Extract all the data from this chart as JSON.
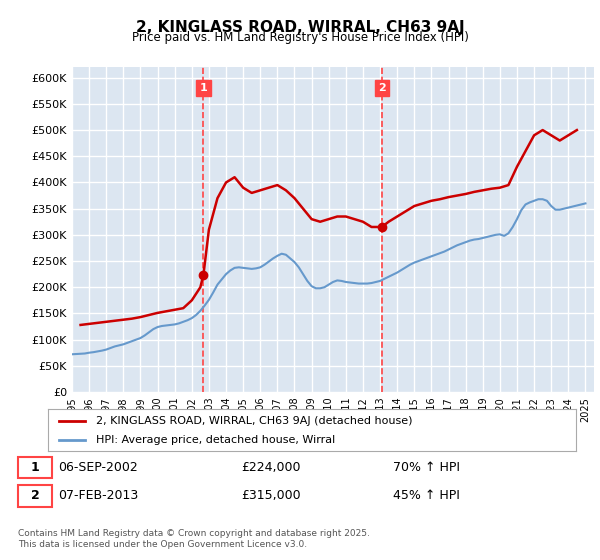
{
  "title": "2, KINGLASS ROAD, WIRRAL, CH63 9AJ",
  "subtitle": "Price paid vs. HM Land Registry's House Price Index (HPI)",
  "ylabel_ticks": [
    "£0",
    "£50K",
    "£100K",
    "£150K",
    "£200K",
    "£250K",
    "£300K",
    "£350K",
    "£400K",
    "£450K",
    "£500K",
    "£550K",
    "£600K"
  ],
  "ylim": [
    0,
    620000
  ],
  "ytick_values": [
    0,
    50000,
    100000,
    150000,
    200000,
    250000,
    300000,
    350000,
    400000,
    450000,
    500000,
    550000,
    600000
  ],
  "xlim_start": 1995.0,
  "xlim_end": 2025.5,
  "background_color": "#dce6f1",
  "plot_background": "#dce6f1",
  "grid_color": "#ffffff",
  "red_line_color": "#cc0000",
  "blue_line_color": "#6699cc",
  "vline_color": "#ff4444",
  "annotation_box_color": "#ff4444",
  "transaction1_date": "06-SEP-2002",
  "transaction1_price": 224000,
  "transaction1_hpi": "70% ↑ HPI",
  "transaction1_x": 2002.68,
  "transaction2_date": "07-FEB-2013",
  "transaction2_price": 315000,
  "transaction2_hpi": "45% ↑ HPI",
  "transaction2_x": 2013.1,
  "legend_label_red": "2, KINGLASS ROAD, WIRRAL, CH63 9AJ (detached house)",
  "legend_label_blue": "HPI: Average price, detached house, Wirral",
  "footer_text": "Contains HM Land Registry data © Crown copyright and database right 2025.\nThis data is licensed under the Open Government Licence v3.0.",
  "hpi_data_x": [
    1995.0,
    1995.25,
    1995.5,
    1995.75,
    1996.0,
    1996.25,
    1996.5,
    1996.75,
    1997.0,
    1997.25,
    1997.5,
    1997.75,
    1998.0,
    1998.25,
    1998.5,
    1998.75,
    1999.0,
    1999.25,
    1999.5,
    1999.75,
    2000.0,
    2000.25,
    2000.5,
    2000.75,
    2001.0,
    2001.25,
    2001.5,
    2001.75,
    2002.0,
    2002.25,
    2002.5,
    2002.75,
    2003.0,
    2003.25,
    2003.5,
    2003.75,
    2004.0,
    2004.25,
    2004.5,
    2004.75,
    2005.0,
    2005.25,
    2005.5,
    2005.75,
    2006.0,
    2006.25,
    2006.5,
    2006.75,
    2007.0,
    2007.25,
    2007.5,
    2007.75,
    2008.0,
    2008.25,
    2008.5,
    2008.75,
    2009.0,
    2009.25,
    2009.5,
    2009.75,
    2010.0,
    2010.25,
    2010.5,
    2010.75,
    2011.0,
    2011.25,
    2011.5,
    2011.75,
    2012.0,
    2012.25,
    2012.5,
    2012.75,
    2013.0,
    2013.25,
    2013.5,
    2013.75,
    2014.0,
    2014.25,
    2014.5,
    2014.75,
    2015.0,
    2015.25,
    2015.5,
    2015.75,
    2016.0,
    2016.25,
    2016.5,
    2016.75,
    2017.0,
    2017.25,
    2017.5,
    2017.75,
    2018.0,
    2018.25,
    2018.5,
    2018.75,
    2019.0,
    2019.25,
    2019.5,
    2019.75,
    2020.0,
    2020.25,
    2020.5,
    2020.75,
    2021.0,
    2021.25,
    2021.5,
    2021.75,
    2022.0,
    2022.25,
    2022.5,
    2022.75,
    2023.0,
    2023.25,
    2023.5,
    2023.75,
    2024.0,
    2024.25,
    2024.5,
    2024.75,
    2025.0
  ],
  "hpi_data_y": [
    72000,
    72500,
    73000,
    73500,
    75000,
    76000,
    77500,
    79000,
    81000,
    84000,
    87000,
    89000,
    91000,
    94000,
    97000,
    100000,
    103000,
    108000,
    114000,
    120000,
    124000,
    126000,
    127000,
    128000,
    129000,
    131000,
    134000,
    137000,
    141000,
    147000,
    155000,
    165000,
    176000,
    190000,
    205000,
    215000,
    225000,
    232000,
    237000,
    238000,
    237000,
    236000,
    235000,
    236000,
    238000,
    243000,
    249000,
    255000,
    260000,
    264000,
    262000,
    255000,
    248000,
    238000,
    225000,
    212000,
    202000,
    198000,
    198000,
    200000,
    205000,
    210000,
    213000,
    212000,
    210000,
    209000,
    208000,
    207000,
    207000,
    207000,
    208000,
    210000,
    212000,
    216000,
    220000,
    224000,
    228000,
    233000,
    238000,
    243000,
    247000,
    250000,
    253000,
    256000,
    259000,
    262000,
    265000,
    268000,
    272000,
    276000,
    280000,
    283000,
    286000,
    289000,
    291000,
    292000,
    294000,
    296000,
    298000,
    300000,
    301000,
    298000,
    303000,
    315000,
    330000,
    347000,
    358000,
    362000,
    365000,
    368000,
    368000,
    365000,
    355000,
    348000,
    348000,
    350000,
    352000,
    354000,
    356000,
    358000,
    360000
  ],
  "price_data_x": [
    1995.5,
    1996.0,
    1996.5,
    1997.0,
    1997.5,
    1998.0,
    1998.5,
    1999.0,
    1999.5,
    2000.0,
    2000.5,
    2001.0,
    2001.5,
    2002.0,
    2002.5,
    2002.68,
    2003.0,
    2003.5,
    2004.0,
    2004.5,
    2005.0,
    2005.5,
    2006.0,
    2006.5,
    2007.0,
    2007.5,
    2008.0,
    2008.5,
    2009.0,
    2009.5,
    2010.0,
    2010.5,
    2011.0,
    2011.5,
    2012.0,
    2012.5,
    2013.1,
    2013.5,
    2014.0,
    2014.5,
    2015.0,
    2015.5,
    2016.0,
    2016.5,
    2017.0,
    2017.5,
    2018.0,
    2018.5,
    2019.0,
    2019.5,
    2020.0,
    2020.5,
    2021.0,
    2021.5,
    2022.0,
    2022.5,
    2023.0,
    2023.5,
    2024.0,
    2024.5
  ],
  "price_data_y": [
    128000,
    130000,
    132000,
    134000,
    136000,
    138000,
    140000,
    143000,
    147000,
    151000,
    154000,
    157000,
    160000,
    175000,
    200000,
    224000,
    310000,
    370000,
    400000,
    410000,
    390000,
    380000,
    385000,
    390000,
    395000,
    385000,
    370000,
    350000,
    330000,
    325000,
    330000,
    335000,
    335000,
    330000,
    325000,
    315000,
    315000,
    325000,
    335000,
    345000,
    355000,
    360000,
    365000,
    368000,
    372000,
    375000,
    378000,
    382000,
    385000,
    388000,
    390000,
    395000,
    430000,
    460000,
    490000,
    500000,
    490000,
    480000,
    490000,
    500000
  ]
}
